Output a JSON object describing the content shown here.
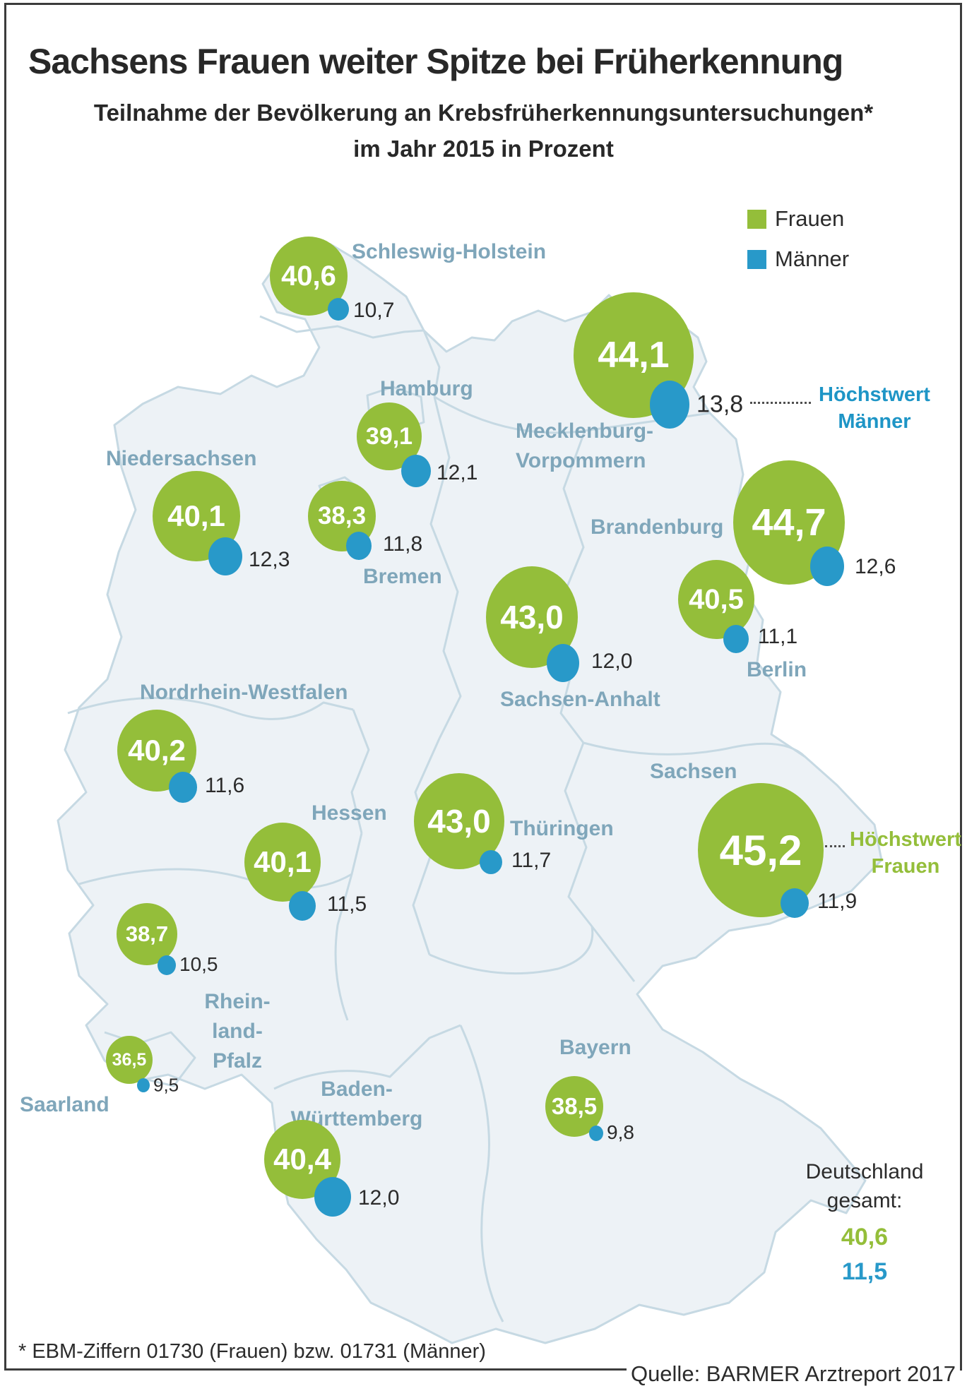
{
  "title": "Sachsens Frauen weiter Spitze bei Früherkennung",
  "subtitle_line1": "Teilnahme der Bevölkerung an Krebsfrüherkennungsuntersuchungen*",
  "subtitle_line2": "im Jahr 2015 in Prozent",
  "legend": {
    "frauen": "Frauen",
    "maenner": "Männer"
  },
  "colors": {
    "frauen_green": "#94be3a",
    "maenner_blue": "#2899c9",
    "state_label": "#7fa6ba",
    "annotation_maenner": "#1e95c6",
    "annotation_frauen": "#94be3a",
    "map_fill": "#edf2f6",
    "map_border": "#c6d9e3"
  },
  "annotations": {
    "hoechstwert_maenner": [
      "Höchstwert",
      "Männer"
    ],
    "hoechstwert_frauen": [
      "Höchstwert",
      "Frauen"
    ]
  },
  "total": {
    "line1": "Deutschland",
    "line2": "gesamt:",
    "frauen": "40,6",
    "maenner": "11,5"
  },
  "footnote": "* EBM-Ziffern 01730 (Frauen) bzw. 01731 (Männer)",
  "source": "Quelle: BARMER Arztreport 2017",
  "chart_data": {
    "type": "bubble-map",
    "title": "Sachsens Frauen weiter Spitze bei Früherkennung",
    "subtitle": "Teilnahme der Bevölkerung an Krebsfrüherkennungsuntersuchungen* im Jahr 2015 in Prozent",
    "unit": "Prozent",
    "year": "2015",
    "series": [
      "Frauen",
      "Männer"
    ],
    "states": [
      {
        "name": "Schleswig-Holstein",
        "label_lines": [
          "Schleswig-Holstein"
        ],
        "frauen": "40,6",
        "maenner": "10,7"
      },
      {
        "name": "Hamburg",
        "label_lines": [
          "Hamburg"
        ],
        "frauen": "39,1",
        "maenner": "12,1"
      },
      {
        "name": "Mecklenburg-Vorpommern",
        "label_lines": [
          "Mecklenburg-",
          "Vorpommern"
        ],
        "frauen": "44,1",
        "maenner": "13,8",
        "annotation": "Höchstwert Männer"
      },
      {
        "name": "Niedersachsen",
        "label_lines": [
          "Niedersachsen"
        ],
        "frauen": "40,1",
        "maenner": "12,3"
      },
      {
        "name": "Bremen",
        "label_lines": [
          "Bremen"
        ],
        "frauen": "38,3",
        "maenner": "11,8"
      },
      {
        "name": "Brandenburg",
        "label_lines": [
          "Brandenburg"
        ],
        "frauen": "44,7",
        "maenner": "12,6"
      },
      {
        "name": "Sachsen-Anhalt",
        "label_lines": [
          "Sachsen-Anhalt"
        ],
        "frauen": "43,0",
        "maenner": "12,0"
      },
      {
        "name": "Berlin",
        "label_lines": [
          "Berlin"
        ],
        "frauen": "40,5",
        "maenner": "11,1"
      },
      {
        "name": "Nordrhein-Westfalen",
        "label_lines": [
          "Nordrhein-Westfalen"
        ],
        "frauen": "40,2",
        "maenner": "11,6"
      },
      {
        "name": "Hessen",
        "label_lines": [
          "Hessen"
        ],
        "frauen": "40,1",
        "maenner": "11,5"
      },
      {
        "name": "Thüringen",
        "label_lines": [
          "Thüringen"
        ],
        "frauen": "43,0",
        "maenner": "11,7"
      },
      {
        "name": "Sachsen",
        "label_lines": [
          "Sachsen"
        ],
        "frauen": "45,2",
        "maenner": "11,9",
        "annotation": "Höchstwert Frauen"
      },
      {
        "name": "Rheinland-Pfalz",
        "label_lines": [
          "Rhein-",
          "land-",
          "Pfalz"
        ],
        "frauen": "38,7",
        "maenner": "10,5"
      },
      {
        "name": "Saarland",
        "label_lines": [
          "Saarland"
        ],
        "frauen": "36,5",
        "maenner": "9,5"
      },
      {
        "name": "Baden-Württemberg",
        "label_lines": [
          "Baden-",
          "Württemberg"
        ],
        "frauen": "40,4",
        "maenner": "12,0"
      },
      {
        "name": "Bayern",
        "label_lines": [
          "Bayern"
        ],
        "frauen": "38,5",
        "maenner": "9,8"
      }
    ],
    "germany_total": {
      "label": "Deutschland gesamt:",
      "frauen": "40,6",
      "maenner": "11,5"
    }
  }
}
